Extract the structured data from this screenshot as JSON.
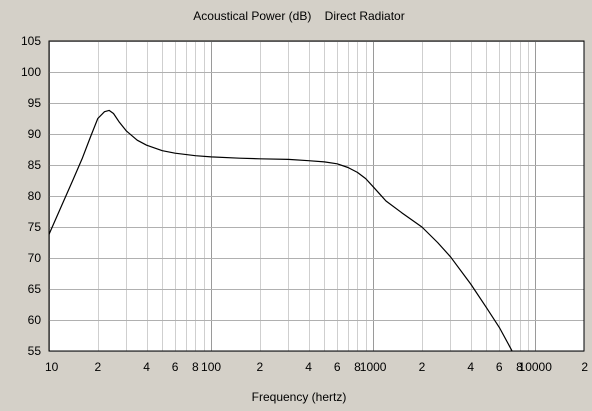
{
  "chart_data": {
    "type": "line",
    "title": "Acoustical Power (dB)    Direct Radiator",
    "xlabel": "Frequency (hertz)",
    "ylabel": "",
    "x_scale": "log",
    "xlim": [
      10,
      20000
    ],
    "ylim": [
      55,
      105
    ],
    "y_ticks": [
      55,
      60,
      65,
      70,
      75,
      80,
      85,
      90,
      95,
      100,
      105
    ],
    "x_tick_labels": [
      {
        "x": 10,
        "label": "10"
      },
      {
        "x": 20,
        "label": "2"
      },
      {
        "x": 40,
        "label": "4"
      },
      {
        "x": 60,
        "label": "6"
      },
      {
        "x": 80,
        "label": "8"
      },
      {
        "x": 100,
        "label": "100"
      },
      {
        "x": 200,
        "label": "2"
      },
      {
        "x": 400,
        "label": "4"
      },
      {
        "x": 600,
        "label": "6"
      },
      {
        "x": 800,
        "label": "8"
      },
      {
        "x": 1000,
        "label": "1000"
      },
      {
        "x": 2000,
        "label": "2"
      },
      {
        "x": 4000,
        "label": "4"
      },
      {
        "x": 6000,
        "label": "6"
      },
      {
        "x": 8000,
        "label": "8"
      },
      {
        "x": 10000,
        "label": "10000"
      },
      {
        "x": 20000,
        "label": "2"
      }
    ],
    "grid": true,
    "series": [
      {
        "color": "#000000",
        "x": [
          10,
          12,
          14,
          16,
          18,
          20,
          22,
          23.5,
          25,
          27,
          30,
          35,
          40,
          50,
          60,
          80,
          100,
          150,
          200,
          300,
          400,
          500,
          600,
          700,
          800,
          900,
          1000,
          1200,
          1500,
          2000,
          2500,
          3000,
          4000,
          5000,
          6000,
          7000,
          7200
        ],
        "y": [
          73.8,
          78.5,
          82.5,
          86.0,
          89.5,
          92.5,
          93.6,
          93.8,
          93.3,
          92.0,
          90.5,
          89.0,
          88.2,
          87.3,
          86.9,
          86.5,
          86.3,
          86.1,
          86.0,
          85.9,
          85.7,
          85.5,
          85.2,
          84.6,
          83.8,
          82.8,
          81.5,
          79.2,
          77.3,
          75.0,
          72.5,
          70.2,
          65.8,
          62.0,
          58.8,
          55.6,
          55.0
        ]
      }
    ]
  }
}
